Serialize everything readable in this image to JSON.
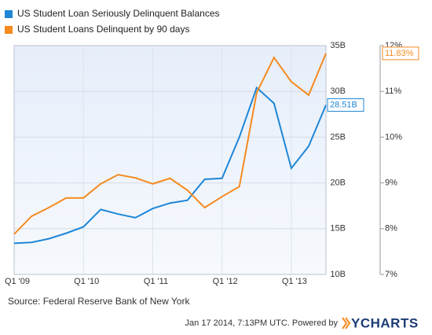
{
  "chart_data": {
    "type": "line",
    "categories": [
      "Q1  '09",
      null,
      null,
      null,
      "Q1  '10",
      null,
      null,
      null,
      "Q1  '11",
      null,
      null,
      null,
      "Q1  '12",
      null,
      null,
      null,
      "Q1  '13",
      null,
      null
    ],
    "series": [
      {
        "name": "US Student Loan Seriously Delinquent Balances",
        "color": "#1f86d6",
        "axis": "y",
        "values": [
          13.4,
          13.5,
          13.9,
          14.5,
          15.2,
          17.1,
          16.6,
          16.2,
          17.2,
          17.8,
          18.1,
          20.4,
          20.5,
          25.0,
          30.4,
          28.7,
          21.6,
          24.0,
          28.51
        ],
        "value_labels": [
          null,
          null,
          null,
          null,
          null,
          null,
          null,
          null,
          null,
          null,
          null,
          null,
          null,
          null,
          null,
          null,
          null,
          null,
          "28.51B"
        ]
      },
      {
        "name": "US Student Loans Delinquent by 90 days",
        "color": "#f58a1f",
        "axis": "y2",
        "values": [
          7.88,
          8.27,
          8.46,
          8.67,
          8.67,
          8.98,
          9.18,
          9.11,
          8.98,
          9.1,
          8.84,
          8.46,
          8.7,
          8.92,
          10.97,
          11.74,
          11.21,
          10.92,
          11.83
        ],
        "value_labels": [
          null,
          null,
          null,
          null,
          null,
          null,
          null,
          null,
          null,
          null,
          null,
          null,
          null,
          null,
          null,
          null,
          null,
          null,
          "11.83%"
        ]
      }
    ],
    "ylim": [
      10,
      35
    ],
    "yticks": [
      {
        "value": 10,
        "label": "10B"
      },
      {
        "value": 15,
        "label": "15B"
      },
      {
        "value": 20,
        "label": "20B"
      },
      {
        "value": 25,
        "label": "25B"
      },
      {
        "value": 30,
        "label": "30B"
      },
      {
        "value": 35,
        "label": "35B"
      }
    ],
    "y2lim": [
      7,
      12
    ],
    "y2ticks": [
      {
        "value": 7,
        "label": "7%"
      },
      {
        "value": 8,
        "label": "8%"
      },
      {
        "value": 9,
        "label": "9%"
      },
      {
        "value": 10,
        "label": "10%"
      },
      {
        "value": 11,
        "label": "11%"
      },
      {
        "value": 12,
        "label": "12%"
      }
    ],
    "grid": true,
    "legend": "top-left",
    "source": "Source: Federal Reserve Bank of New York"
  },
  "footer": {
    "timestamp": "Jan 17 2014, 7:13PM UTC.  Powered by",
    "brand": "YCHARTS"
  }
}
